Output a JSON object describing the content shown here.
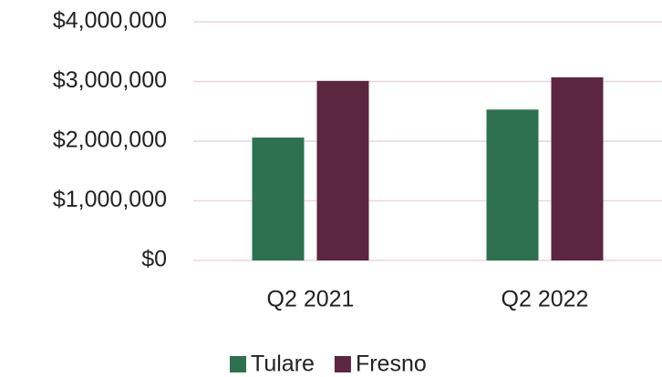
{
  "chart_data": {
    "type": "bar",
    "categories": [
      "Q2 2021",
      "Q2 2022"
    ],
    "series": [
      {
        "name": "Tulare",
        "color": "#2e7150",
        "values": [
          2060000,
          2530000
        ]
      },
      {
        "name": "Fresno",
        "color": "#5c2541",
        "values": [
          3010000,
          3070000
        ]
      }
    ],
    "ylim": [
      0,
      4000000
    ],
    "yticks": [
      {
        "value": 0,
        "label": "$0"
      },
      {
        "value": 1000000,
        "label": "$1,000,000"
      },
      {
        "value": 2000000,
        "label": "$2,000,000"
      },
      {
        "value": 3000000,
        "label": "$3,000,000"
      },
      {
        "value": 4000000,
        "label": "$4,000,000"
      }
    ],
    "grid": true,
    "legend": "bottom"
  }
}
